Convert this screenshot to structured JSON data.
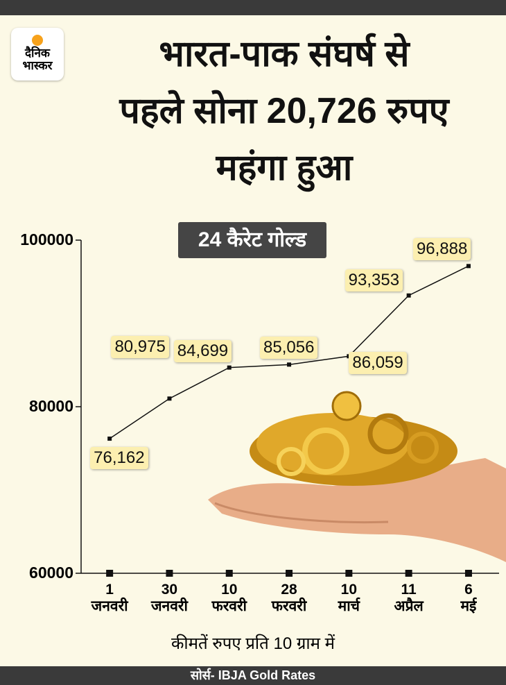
{
  "header": {
    "logo": "दैनिक भास्कर",
    "title_lines": [
      "भारत-पाक संघर्ष से",
      "पहले सोना 20,726 रुपए",
      "महंगा हुआ"
    ]
  },
  "chart_data": {
    "type": "line",
    "subtitle": "24 कैरेट गोल्ड",
    "categories": [
      "1 जनवरी",
      "30 जनवरी",
      "10 फरवरी",
      "28 फरवरी",
      "10 मार्च",
      "11 अप्रैल",
      "6 मई"
    ],
    "values": [
      76162,
      80975,
      84699,
      85056,
      86059,
      93353,
      96888
    ],
    "value_labels": [
      "76,162",
      "80,975",
      "84,699",
      "85,056",
      "86,059",
      "93,353",
      "96,888"
    ],
    "color": "#111111",
    "ylim": [
      60000,
      100000
    ],
    "yticks": [
      60000,
      80000,
      100000
    ],
    "x_axis_label": "कीमतें रुपए प्रति 10 ग्राम में"
  },
  "footer": {
    "source": "सोर्स- IBJA Gold Rates"
  }
}
